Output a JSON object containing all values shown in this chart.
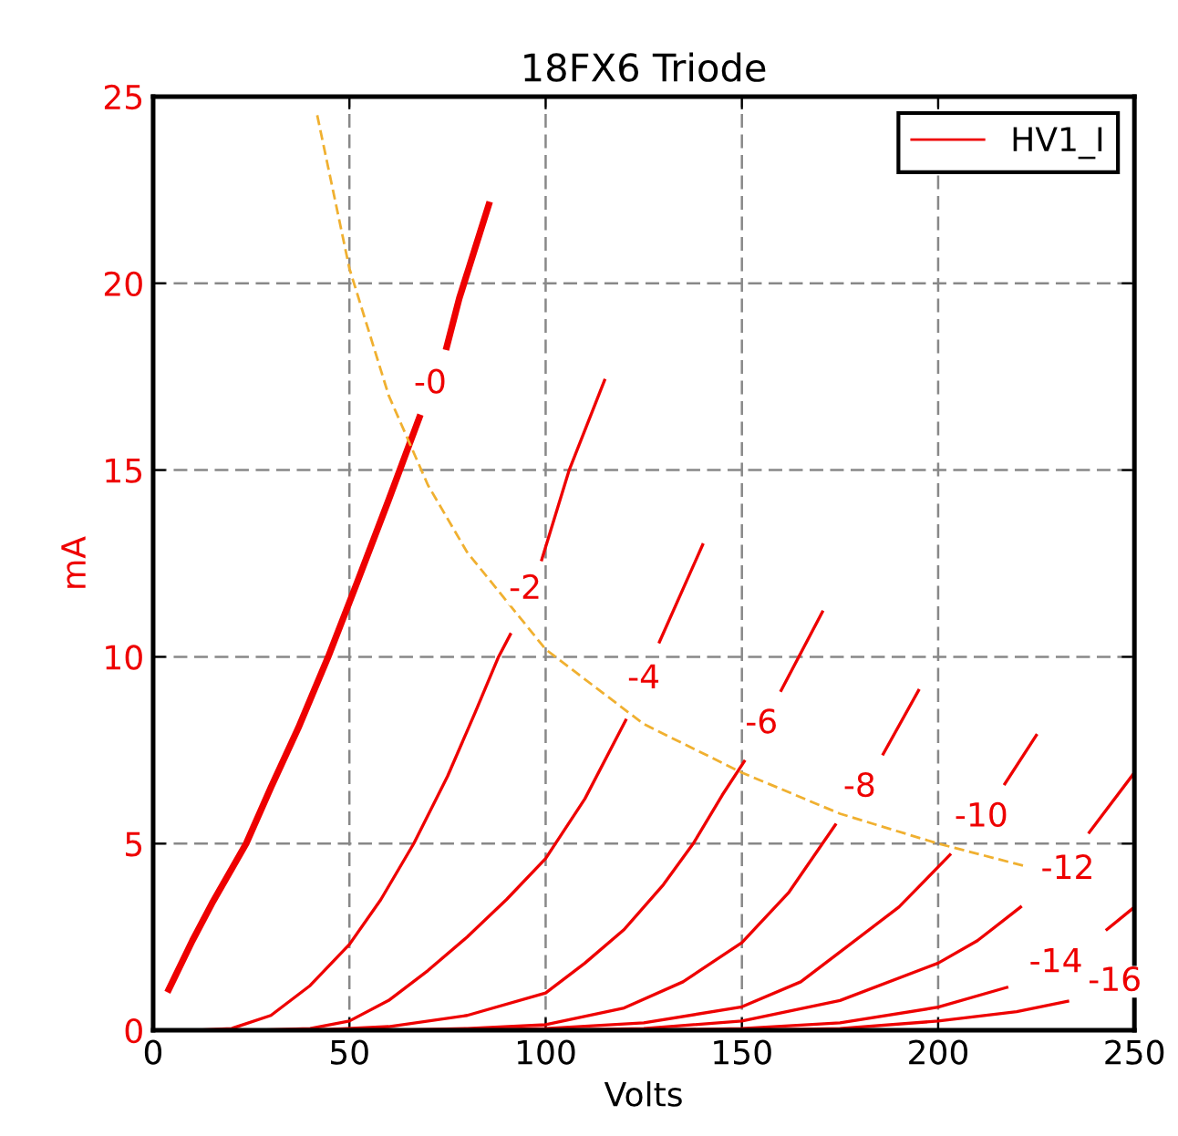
{
  "chart_data": {
    "type": "line",
    "title": "18FX6 Triode",
    "xlabel": "Volts",
    "ylabel": "mA",
    "xlim": [
      0,
      250
    ],
    "xticks": [
      0,
      50,
      100,
      150,
      200,
      250
    ],
    "ylim": [
      0,
      25
    ],
    "yticks": [
      0,
      5,
      10,
      15,
      20,
      25
    ],
    "grid": true,
    "legend": "top right",
    "marker": "none",
    "line_style": "solid",
    "series": [
      {
        "name": "HV1_I",
        "color": "#ee0000",
        "x": [
          4,
          10,
          15,
          23.7,
          30,
          37,
          44.6,
          52,
          60,
          67.8,
          71,
          74.8,
          78,
          85.5
        ],
        "values": [
          1.1,
          2.4,
          3.4,
          5,
          6.5,
          8.1,
          10,
          12,
          14.2,
          16.4,
          null,
          18.3,
          19.6,
          22.1
        ]
      },
      {
        "color": "#ee0000",
        "x": [
          10,
          20,
          30,
          40,
          50,
          58,
          66.4,
          75,
          82,
          88,
          91,
          95,
          99,
          106,
          115
        ],
        "values": [
          0,
          0.05,
          0.4,
          1.2,
          2.3,
          3.5,
          5,
          6.8,
          8.5,
          10,
          10.6,
          null,
          12.6,
          15,
          17.4
        ]
      },
      {
        "color": "#ee0000",
        "x": [
          25,
          40,
          50,
          60,
          70,
          80,
          90,
          100,
          110,
          120.4,
          125,
          129,
          140
        ],
        "values": [
          0,
          0.05,
          0.25,
          0.8,
          1.6,
          2.5,
          3.5,
          4.6,
          6.2,
          8.3,
          null,
          10.4,
          13.0
        ]
      },
      {
        "color": "#ee0000",
        "x": [
          40,
          60,
          80,
          100,
          110,
          120,
          130,
          137.6,
          145,
          150.6,
          155,
          160,
          170.5
        ],
        "values": [
          0,
          0.1,
          0.4,
          1.0,
          1.8,
          2.7,
          3.9,
          5,
          6.3,
          7.2,
          null,
          9.1,
          11.2
        ]
      },
      {
        "color": "#ee0000",
        "x": [
          60,
          80,
          100,
          120,
          135,
          150,
          162,
          173.8,
          180,
          186,
          195
        ],
        "values": [
          0,
          0.05,
          0.15,
          0.6,
          1.3,
          2.35,
          3.7,
          5.5,
          null,
          7.4,
          9.1
        ]
      },
      {
        "color": "#ee0000",
        "x": [
          80,
          100,
          125,
          150,
          165,
          175,
          190,
          203,
          210,
          217,
          225
        ],
        "values": [
          0,
          0.05,
          0.2,
          0.63,
          1.3,
          2.1,
          3.3,
          4.7,
          null,
          6.6,
          7.9
        ]
      },
      {
        "color": "#ee0000",
        "x": [
          100,
          125,
          150,
          175,
          200,
          210,
          221,
          230,
          238.5,
          250
        ],
        "values": [
          0,
          0.05,
          0.25,
          0.8,
          1.8,
          2.4,
          3.3,
          null,
          5.3,
          6.9
        ]
      },
      {
        "color": "#ee0000",
        "x": [
          125,
          150,
          175,
          200,
          217.5,
          230,
          243,
          250
        ],
        "values": [
          0,
          0.05,
          0.2,
          0.62,
          1.15,
          null,
          2.7,
          3.3
        ]
      },
      {
        "color": "#ee0000",
        "x": [
          150,
          175,
          200,
          220,
          233
        ],
        "values": [
          0,
          0.05,
          0.25,
          0.5,
          0.78
        ]
      },
      {
        "color": "#f0b030",
        "line_style": "dashed",
        "x": [
          41.8,
          50,
          60,
          70,
          80,
          100,
          125,
          150,
          175,
          200,
          222
        ],
        "values": [
          24.5,
          20.4,
          17,
          14.6,
          12.8,
          10.2,
          8.2,
          6.9,
          5.8,
          5.0,
          4.4
        ]
      }
    ],
    "annotations": [
      {
        "text": "-0",
        "x": 70.6,
        "y": 17.3
      },
      {
        "text": "-2",
        "x": 94.8,
        "y": 11.8
      },
      {
        "text": "-4",
        "x": 125,
        "y": 9.4
      },
      {
        "text": "-6",
        "x": 155,
        "y": 8.2
      },
      {
        "text": "-8",
        "x": 180,
        "y": 6.5
      },
      {
        "text": "-10",
        "x": 211,
        "y": 5.7
      },
      {
        "text": "-12",
        "x": 233,
        "y": 4.3
      },
      {
        "text": "-14",
        "x": 230,
        "y": 1.8
      },
      {
        "text": "-16",
        "x": 245,
        "y": 1.3
      }
    ]
  }
}
